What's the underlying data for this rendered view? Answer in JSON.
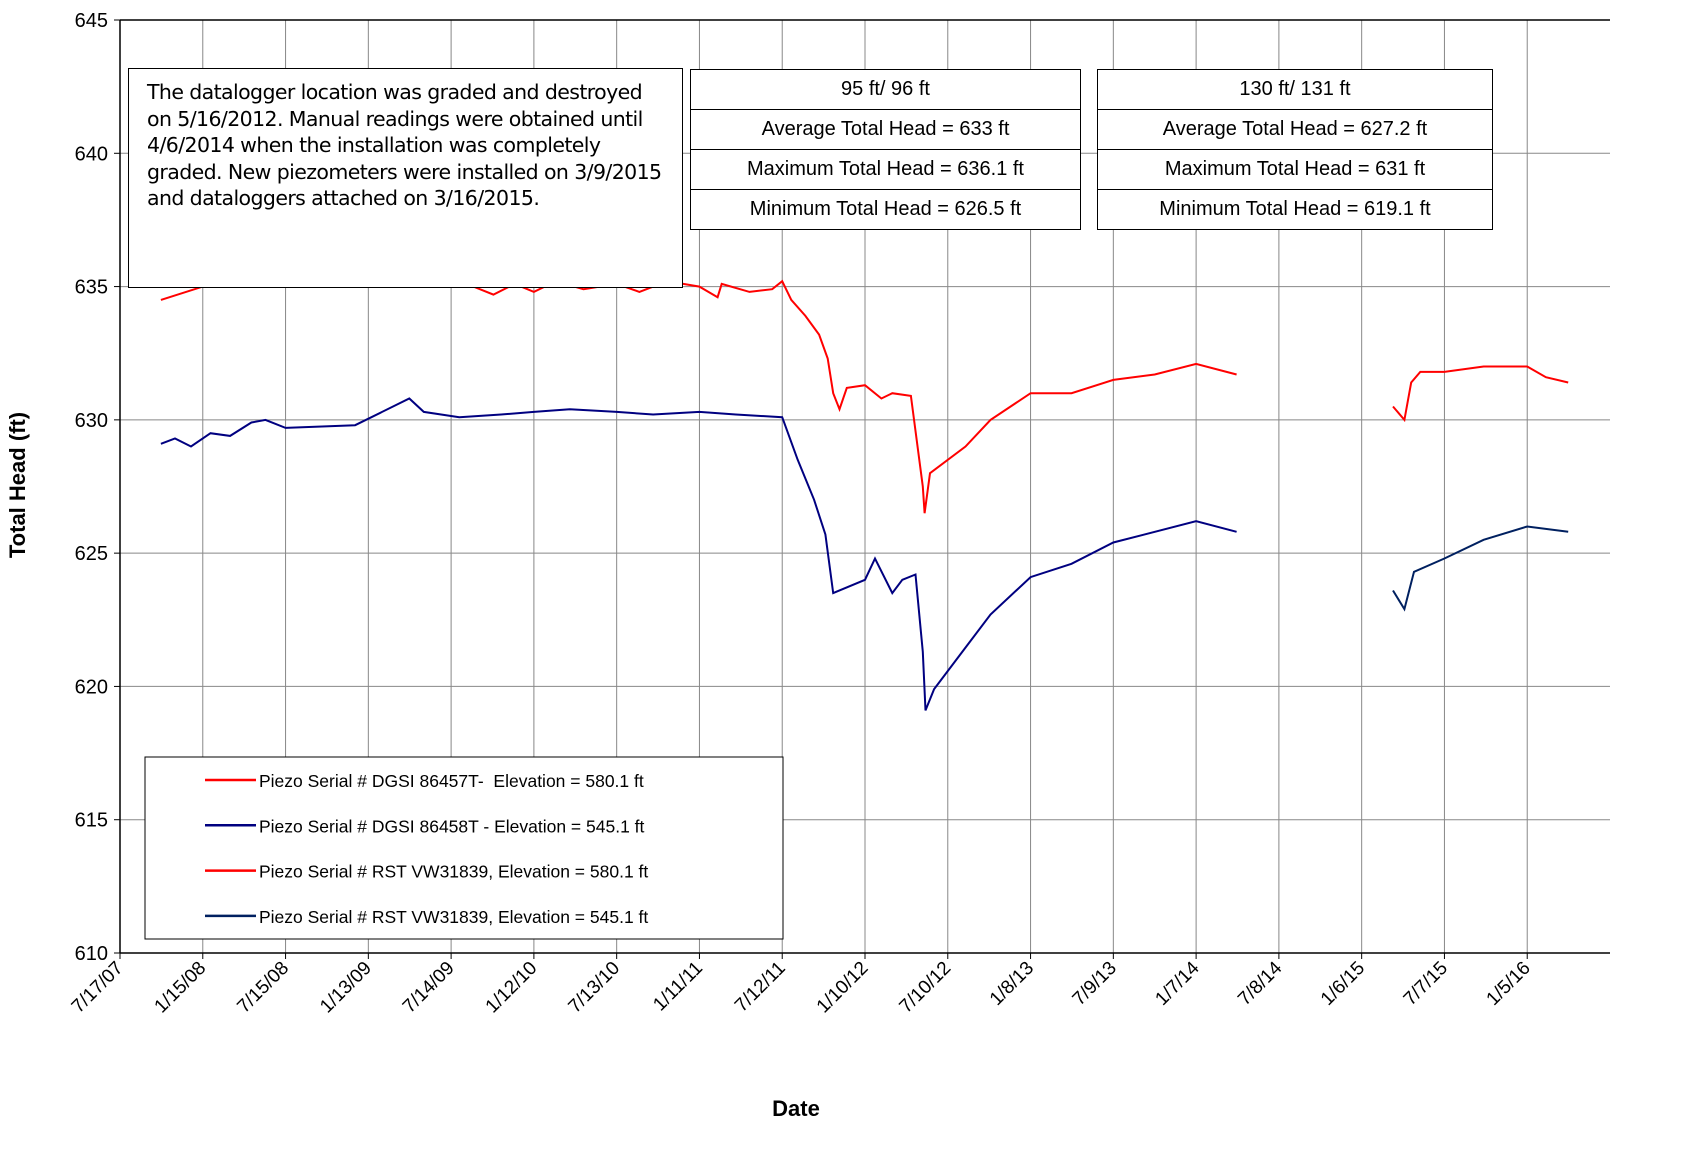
{
  "chart_data": {
    "type": "line",
    "x_label": "Date",
    "y_label": "Total Head (ft)",
    "xlim": [
      "2007-07-17",
      "2016-07-05"
    ],
    "ylim": [
      610,
      645
    ],
    "yticks": [
      610,
      615,
      620,
      625,
      630,
      635,
      640,
      645
    ],
    "xticks": [
      {
        "value": "2007-07-17",
        "label": "7/17/07"
      },
      {
        "value": "2008-01-15",
        "label": "1/15/08"
      },
      {
        "value": "2008-07-15",
        "label": "7/15/08"
      },
      {
        "value": "2009-01-13",
        "label": "1/13/09"
      },
      {
        "value": "2009-07-14",
        "label": "7/14/09"
      },
      {
        "value": "2010-01-12",
        "label": "1/12/10"
      },
      {
        "value": "2010-07-13",
        "label": "7/13/10"
      },
      {
        "value": "2011-01-11",
        "label": "1/11/11"
      },
      {
        "value": "2011-07-12",
        "label": "7/12/11"
      },
      {
        "value": "2012-01-10",
        "label": "1/10/12"
      },
      {
        "value": "2012-07-10",
        "label": "7/10/12"
      },
      {
        "value": "2013-01-08",
        "label": "1/8/13"
      },
      {
        "value": "2013-07-09",
        "label": "7/9/13"
      },
      {
        "value": "2014-01-07",
        "label": "1/7/14"
      },
      {
        "value": "2014-07-08",
        "label": "7/8/14"
      },
      {
        "value": "2015-01-06",
        "label": "1/6/15"
      },
      {
        "value": "2015-07-07",
        "label": "7/7/15"
      },
      {
        "value": "2016-01-05",
        "label": "1/5/16"
      }
    ],
    "grid": true,
    "note": "The datalogger location was graded and destroyed on 5/16/2012. Manual readings were obtained until 4/6/2014 when the installation was completely graded. New piezometers were installed on 3/9/2015 and dataloggers attached on 3/16/2015.",
    "stat_tables": [
      [
        "95 ft/ 96 ft",
        "Average Total Head = 633 ft",
        "Maximum Total Head = 636.1 ft",
        "Minimum Total Head = 626.5 ft"
      ],
      [
        "130 ft/ 131 ft",
        "Average Total Head = 627.2 ft",
        "Maximum Total Head = 631 ft",
        "Minimum Total Head = 619.1 ft"
      ]
    ],
    "series": [
      {
        "name": "Piezo Serial # DGSI 86457T-  Elevation = 580.1 ft",
        "color": "#ff0000",
        "x": [
          "2007-10-15",
          "2008-01-15",
          "2008-07-15",
          "2009-06-01",
          "2009-09-01",
          "2009-10-15",
          "2009-12-01",
          "2010-01-12",
          "2010-03-01",
          "2010-05-01",
          "2010-07-13",
          "2010-09-01",
          "2010-11-01",
          "2011-01-11",
          "2011-02-20",
          "2011-03-01",
          "2011-05-01",
          "2011-06-20",
          "2011-07-12",
          "2011-08-01",
          "2011-09-01",
          "2011-10-01",
          "2011-10-20",
          "2011-11-01",
          "2011-11-15",
          "2011-12-01",
          "2012-01-10",
          "2012-02-15",
          "2012-03-10",
          "2012-04-20",
          "2012-05-16",
          "2012-05-20",
          "2012-06-01",
          "2012-08-18",
          "2012-10-12",
          "2013-01-08",
          "2013-04-08",
          "2013-07-09",
          "2013-10-08",
          "2014-01-07",
          "2014-04-06"
        ],
        "values": [
          634.5,
          635.0,
          635.0,
          635.0,
          635.0,
          634.7,
          635.1,
          634.8,
          635.2,
          634.9,
          635.1,
          634.8,
          635.2,
          635.0,
          634.6,
          635.1,
          634.8,
          634.9,
          635.2,
          634.5,
          633.9,
          633.2,
          632.3,
          631.0,
          630.4,
          631.2,
          631.3,
          630.8,
          631.0,
          630.9,
          627.5,
          626.5,
          628.0,
          629.0,
          630.0,
          631.0,
          631.0,
          631.5,
          631.7,
          632.1,
          631.7
        ]
      },
      {
        "name": "Piezo Serial # DGSI 86458T - Elevation = 545.1 ft",
        "color": "#000080",
        "x": [
          "2007-10-15",
          "2007-11-15",
          "2007-12-20",
          "2008-02-01",
          "2008-03-15",
          "2008-05-01",
          "2008-06-01",
          "2008-07-15",
          "2008-12-15",
          "2009-04-13",
          "2009-05-15",
          "2009-08-01",
          "2009-11-01",
          "2010-01-12",
          "2010-04-01",
          "2010-07-13",
          "2010-10-01",
          "2011-01-11",
          "2011-04-01",
          "2011-07-12",
          "2011-08-15",
          "2011-09-20",
          "2011-10-15",
          "2011-11-01",
          "2012-01-10",
          "2012-02-01",
          "2012-03-10",
          "2012-04-01",
          "2012-04-30",
          "2012-05-16",
          "2012-05-22",
          "2012-06-10",
          "2012-08-20",
          "2012-10-12",
          "2013-01-08",
          "2013-04-08",
          "2013-07-09",
          "2014-01-07",
          "2014-04-06"
        ],
        "values": [
          629.1,
          629.3,
          629.0,
          629.5,
          629.4,
          629.9,
          630.0,
          629.7,
          629.8,
          630.8,
          630.3,
          630.1,
          630.2,
          630.3,
          630.4,
          630.3,
          630.2,
          630.3,
          630.2,
          630.1,
          628.5,
          627.0,
          625.7,
          623.5,
          624.0,
          624.8,
          623.5,
          624.0,
          624.2,
          621.3,
          619.1,
          619.9,
          621.5,
          622.7,
          624.1,
          624.6,
          625.4,
          626.2,
          625.8
        ]
      },
      {
        "name": "Piezo Serial # RST VW31839, Elevation = 580.1 ft",
        "color": "#ff0000",
        "x": [
          "2015-03-16",
          "2015-04-10",
          "2015-04-25",
          "2015-05-15",
          "2015-07-07",
          "2015-10-01",
          "2016-01-05",
          "2016-02-15",
          "2016-04-04"
        ],
        "values": [
          630.5,
          630.0,
          631.4,
          631.8,
          631.8,
          632.0,
          632.0,
          631.6,
          631.4
        ]
      },
      {
        "name": "Piezo Serial # RST VW31839, Elevation = 545.1 ft",
        "color": "#002060",
        "x": [
          "2015-03-16",
          "2015-04-10",
          "2015-05-01",
          "2015-07-07",
          "2015-10-01",
          "2016-01-05",
          "2016-04-04"
        ],
        "values": [
          623.6,
          622.9,
          624.3,
          624.8,
          625.5,
          626.0,
          625.8
        ]
      }
    ]
  }
}
